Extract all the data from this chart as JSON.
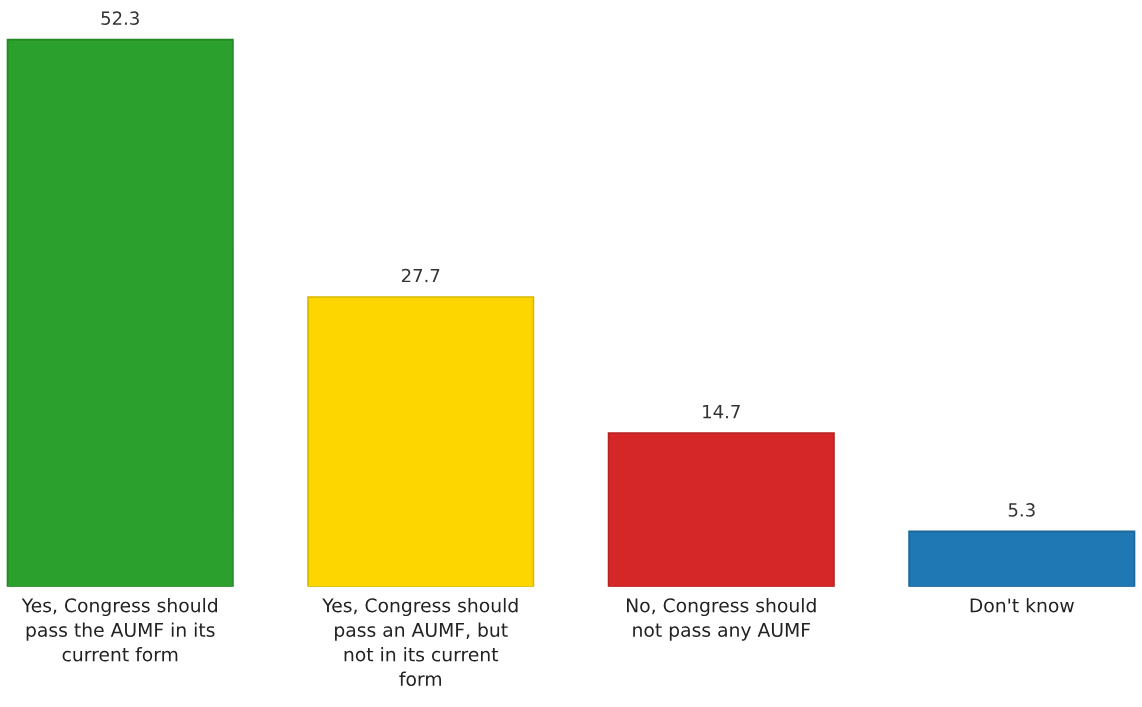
{
  "chart_data": {
    "type": "bar",
    "categories": [
      "Yes, Congress should pass the AUMF in its current form",
      "Yes, Congress should pass an AUMF, but not in its current form",
      "No, Congress should not pass any AUMF",
      "Don't know"
    ],
    "values": [
      52.3,
      27.7,
      14.7,
      5.3
    ],
    "colors": [
      "#2ca02c",
      "#fdd600",
      "#d62728",
      "#1f77b4"
    ],
    "data_labels": true,
    "grid": false,
    "legend": false,
    "tick_labels": "x"
  }
}
